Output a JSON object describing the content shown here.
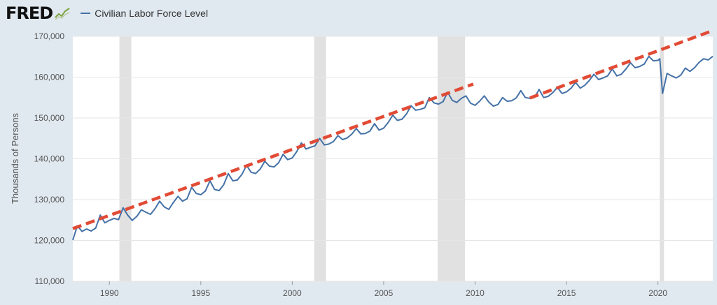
{
  "logo": {
    "text": "FRED"
  },
  "chart_data": {
    "type": "line",
    "title": "",
    "ylabel": "Thousands of Persons",
    "xlabel": "",
    "xlim": [
      1988.0,
      2023.0
    ],
    "ylim": [
      110000,
      170000
    ],
    "grid": true,
    "legend_position": "top-left",
    "x_ticks": [
      1990,
      1995,
      2000,
      2005,
      2010,
      2015,
      2020
    ],
    "x_tick_labels": [
      "1990",
      "1995",
      "2000",
      "2005",
      "2010",
      "2015",
      "2020"
    ],
    "y_ticks": [
      110000,
      120000,
      130000,
      140000,
      150000,
      160000,
      170000
    ],
    "y_tick_labels": [
      "110,000",
      "120,000",
      "130,000",
      "140,000",
      "150,000",
      "160,000",
      "170,000"
    ],
    "recessions": [
      [
        1990.55,
        1991.2
      ],
      [
        2001.2,
        2001.85
      ],
      [
        2007.95,
        2009.45
      ],
      [
        2020.1,
        2020.33
      ]
    ],
    "series": [
      {
        "name": "Civilian Labor Force Level",
        "color": "#4572a7",
        "points": [
          [
            1988.0,
            120100
          ],
          [
            1988.25,
            123600
          ],
          [
            1988.5,
            122200
          ],
          [
            1988.75,
            122800
          ],
          [
            1989.0,
            122300
          ],
          [
            1989.25,
            123000
          ],
          [
            1989.5,
            126200
          ],
          [
            1989.75,
            124300
          ],
          [
            1990.0,
            124900
          ],
          [
            1990.25,
            125400
          ],
          [
            1990.5,
            125100
          ],
          [
            1990.75,
            128000
          ],
          [
            1991.0,
            126200
          ],
          [
            1991.25,
            124900
          ],
          [
            1991.5,
            125900
          ],
          [
            1991.75,
            127500
          ],
          [
            1992.0,
            126900
          ],
          [
            1992.25,
            126400
          ],
          [
            1992.5,
            127800
          ],
          [
            1992.75,
            129600
          ],
          [
            1993.0,
            128200
          ],
          [
            1993.25,
            127600
          ],
          [
            1993.5,
            129300
          ],
          [
            1993.75,
            130800
          ],
          [
            1994.0,
            129600
          ],
          [
            1994.25,
            130200
          ],
          [
            1994.5,
            133000
          ],
          [
            1994.75,
            131500
          ],
          [
            1995.0,
            131200
          ],
          [
            1995.25,
            132100
          ],
          [
            1995.5,
            134600
          ],
          [
            1995.75,
            132500
          ],
          [
            1996.0,
            132200
          ],
          [
            1996.25,
            133600
          ],
          [
            1996.5,
            136400
          ],
          [
            1996.75,
            134600
          ],
          [
            1997.0,
            134800
          ],
          [
            1997.25,
            136200
          ],
          [
            1997.5,
            138400
          ],
          [
            1997.75,
            136700
          ],
          [
            1998.0,
            136400
          ],
          [
            1998.25,
            137500
          ],
          [
            1998.5,
            139400
          ],
          [
            1998.75,
            138200
          ],
          [
            1999.0,
            138000
          ],
          [
            1999.25,
            139000
          ],
          [
            1999.5,
            141100
          ],
          [
            1999.75,
            139800
          ],
          [
            2000.0,
            140200
          ],
          [
            2000.25,
            141800
          ],
          [
            2000.5,
            143900
          ],
          [
            2000.75,
            142400
          ],
          [
            2001.0,
            142800
          ],
          [
            2001.25,
            143200
          ],
          [
            2001.5,
            145000
          ],
          [
            2001.75,
            143400
          ],
          [
            2002.0,
            143600
          ],
          [
            2002.25,
            144200
          ],
          [
            2002.5,
            145700
          ],
          [
            2002.75,
            144700
          ],
          [
            2003.0,
            145100
          ],
          [
            2003.25,
            146000
          ],
          [
            2003.5,
            147400
          ],
          [
            2003.75,
            146100
          ],
          [
            2004.0,
            146200
          ],
          [
            2004.25,
            146800
          ],
          [
            2004.5,
            148600
          ],
          [
            2004.75,
            147000
          ],
          [
            2005.0,
            147500
          ],
          [
            2005.25,
            148900
          ],
          [
            2005.5,
            150700
          ],
          [
            2005.75,
            149400
          ],
          [
            2006.0,
            149700
          ],
          [
            2006.25,
            151000
          ],
          [
            2006.5,
            153000
          ],
          [
            2006.75,
            151900
          ],
          [
            2007.0,
            152100
          ],
          [
            2007.25,
            152500
          ],
          [
            2007.5,
            155000
          ],
          [
            2007.75,
            153700
          ],
          [
            2008.0,
            153400
          ],
          [
            2008.25,
            154000
          ],
          [
            2008.5,
            156300
          ],
          [
            2008.75,
            154300
          ],
          [
            2009.0,
            153800
          ],
          [
            2009.25,
            154800
          ],
          [
            2009.5,
            155400
          ],
          [
            2009.75,
            153600
          ],
          [
            2010.0,
            153100
          ],
          [
            2010.25,
            154100
          ],
          [
            2010.5,
            155400
          ],
          [
            2010.75,
            153900
          ],
          [
            2011.0,
            152900
          ],
          [
            2011.25,
            153300
          ],
          [
            2011.5,
            155000
          ],
          [
            2011.75,
            154100
          ],
          [
            2012.0,
            154200
          ],
          [
            2012.25,
            154900
          ],
          [
            2012.5,
            156700
          ],
          [
            2012.75,
            155000
          ],
          [
            2013.0,
            154800
          ],
          [
            2013.25,
            155000
          ],
          [
            2013.5,
            157000
          ],
          [
            2013.75,
            155000
          ],
          [
            2014.0,
            155300
          ],
          [
            2014.25,
            156200
          ],
          [
            2014.5,
            157500
          ],
          [
            2014.75,
            156000
          ],
          [
            2015.0,
            156400
          ],
          [
            2015.25,
            157300
          ],
          [
            2015.5,
            158700
          ],
          [
            2015.75,
            157300
          ],
          [
            2016.0,
            158000
          ],
          [
            2016.25,
            159200
          ],
          [
            2016.5,
            160700
          ],
          [
            2016.75,
            159400
          ],
          [
            2017.0,
            159800
          ],
          [
            2017.25,
            160300
          ],
          [
            2017.5,
            162000
          ],
          [
            2017.75,
            160300
          ],
          [
            2018.0,
            160700
          ],
          [
            2018.25,
            162000
          ],
          [
            2018.5,
            163500
          ],
          [
            2018.75,
            162300
          ],
          [
            2019.0,
            162600
          ],
          [
            2019.25,
            163200
          ],
          [
            2019.5,
            165100
          ],
          [
            2019.75,
            164000
          ],
          [
            2020.0,
            164100
          ],
          [
            2020.1,
            164500
          ],
          [
            2020.25,
            156000
          ],
          [
            2020.5,
            160900
          ],
          [
            2020.75,
            160300
          ],
          [
            2021.0,
            159800
          ],
          [
            2021.25,
            160500
          ],
          [
            2021.5,
            162200
          ],
          [
            2021.75,
            161400
          ],
          [
            2022.0,
            162300
          ],
          [
            2022.25,
            163600
          ],
          [
            2022.5,
            164500
          ],
          [
            2022.75,
            164200
          ],
          [
            2023.0,
            165100
          ]
        ]
      }
    ],
    "annotations": [
      {
        "type": "dashed-trendline",
        "color": "#e14b35",
        "from": [
          1988.0,
          122900
        ],
        "to": [
          2009.9,
          158300
        ]
      },
      {
        "type": "dashed-trendline",
        "color": "#e14b35",
        "from": [
          2013.0,
          154900
        ],
        "to": [
          2023.0,
          171400
        ]
      }
    ]
  }
}
